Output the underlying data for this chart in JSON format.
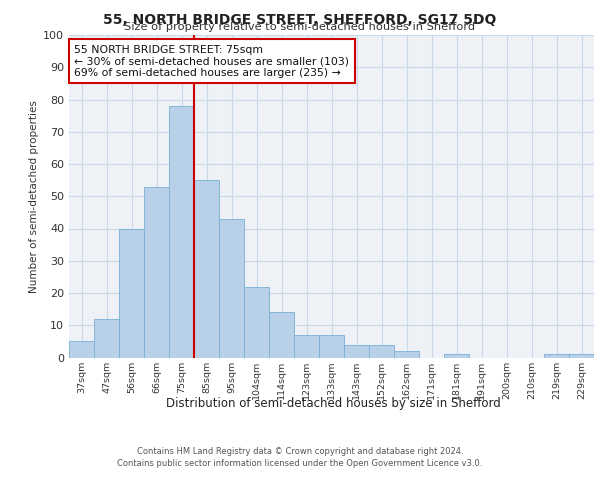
{
  "title": "55, NORTH BRIDGE STREET, SHEFFORD, SG17 5DQ",
  "subtitle": "Size of property relative to semi-detached houses in Shefford",
  "xlabel": "Distribution of semi-detached houses by size in Shefford",
  "ylabel": "Number of semi-detached properties",
  "categories": [
    "37sqm",
    "47sqm",
    "56sqm",
    "66sqm",
    "75sqm",
    "85sqm",
    "95sqm",
    "104sqm",
    "114sqm",
    "123sqm",
    "133sqm",
    "143sqm",
    "152sqm",
    "162sqm",
    "171sqm",
    "181sqm",
    "191sqm",
    "200sqm",
    "210sqm",
    "219sqm",
    "229sqm"
  ],
  "values": [
    5,
    12,
    40,
    53,
    78,
    55,
    43,
    22,
    14,
    7,
    7,
    4,
    4,
    2,
    0,
    1,
    0,
    0,
    0,
    1,
    1
  ],
  "bar_color": "#b8d0e8",
  "bar_edge_color": "#7aafd4",
  "highlight_index": 4,
  "annotation_text": "55 NORTH BRIDGE STREET: 75sqm\n← 30% of semi-detached houses are smaller (103)\n69% of semi-detached houses are larger (235) →",
  "annotation_box_color": "#ffffff",
  "annotation_box_edge": "#cc0000",
  "vline_color": "#cc0000",
  "ylim": [
    0,
    100
  ],
  "yticks": [
    0,
    10,
    20,
    30,
    40,
    50,
    60,
    70,
    80,
    90,
    100
  ],
  "grid_color": "#c8d8e8",
  "background_color": "#eef2f7",
  "footer1": "Contains HM Land Registry data © Crown copyright and database right 2024.",
  "footer2": "Contains public sector information licensed under the Open Government Licence v3.0."
}
